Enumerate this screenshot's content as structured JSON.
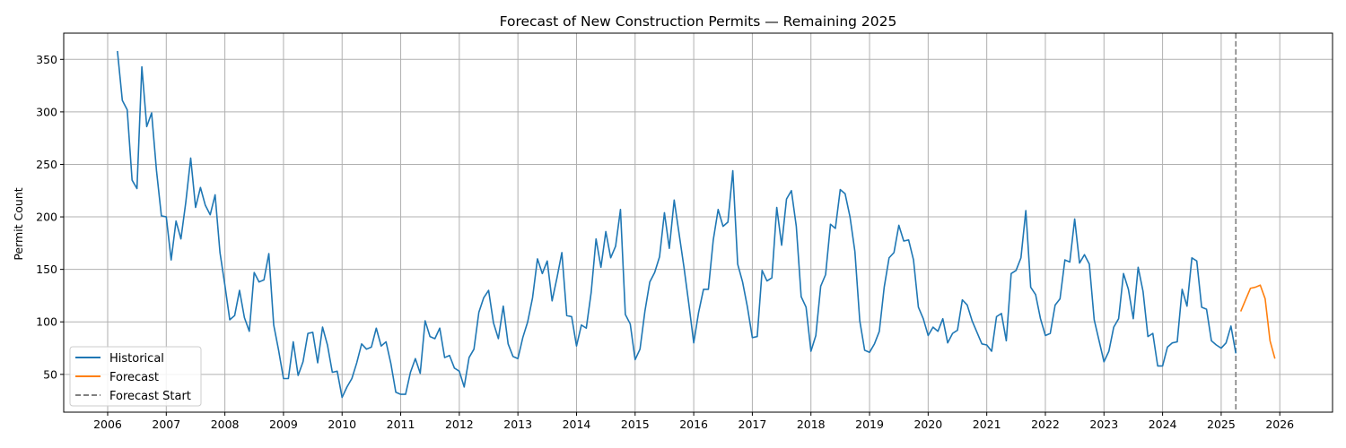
{
  "chart_data": {
    "type": "line",
    "title": "Forecast of New Construction Permits — Remaining 2025",
    "xlabel": "",
    "ylabel": "Permit Count",
    "xlim": [
      2005.25,
      2026.9
    ],
    "ylim": [
      14,
      375
    ],
    "grid": true,
    "legend_position": "lower-left",
    "x_ticks": [
      "2006",
      "2007",
      "2008",
      "2009",
      "2010",
      "2011",
      "2012",
      "2013",
      "2014",
      "2015",
      "2016",
      "2017",
      "2018",
      "2019",
      "2020",
      "2021",
      "2022",
      "2023",
      "2024",
      "2025",
      "2026"
    ],
    "y_ticks": [
      50,
      100,
      150,
      200,
      250,
      300,
      350
    ],
    "series": [
      {
        "name": "Historical",
        "color": "#1f77b4",
        "start": "2006-03",
        "step": "month",
        "values": [
          358,
          311,
          302,
          235,
          227,
          343,
          286,
          299,
          244,
          201,
          200,
          159,
          196,
          179,
          214,
          256,
          209,
          228,
          211,
          202,
          221,
          166,
          135,
          102,
          106,
          130,
          104,
          91,
          147,
          138,
          140,
          165,
          97,
          73,
          46,
          46,
          81,
          49,
          62,
          89,
          90,
          61,
          95,
          78,
          52,
          53,
          28,
          38,
          46,
          61,
          79,
          74,
          76,
          94,
          77,
          81,
          60,
          33,
          31,
          31,
          52,
          65,
          51,
          101,
          86,
          84,
          94,
          66,
          68,
          56,
          53,
          38,
          66,
          74,
          109,
          123,
          130,
          99,
          84,
          115,
          79,
          67,
          65,
          85,
          100,
          123,
          160,
          146,
          158,
          120,
          142,
          166,
          106,
          105,
          77,
          97,
          94,
          128,
          179,
          152,
          186,
          161,
          172,
          207,
          107,
          98,
          64,
          74,
          110,
          138,
          147,
          162,
          204,
          170,
          216,
          184,
          152,
          117,
          80,
          109,
          131,
          131,
          178,
          207,
          191,
          195,
          244,
          155,
          138,
          114,
          85,
          86,
          149,
          139,
          142,
          209,
          173,
          217,
          225,
          191,
          124,
          114,
          72,
          87,
          134,
          145,
          193,
          189,
          226,
          222,
          200,
          167,
          101,
          73,
          71,
          79,
          91,
          133,
          161,
          166,
          192,
          177,
          178,
          159,
          114,
          103,
          87,
          95,
          91,
          103,
          80,
          89,
          92,
          121,
          116,
          101,
          90,
          79,
          78,
          72,
          105,
          108,
          82,
          146,
          149,
          161,
          206,
          133,
          126,
          103,
          87,
          89,
          116,
          122,
          159,
          157,
          198,
          156,
          164,
          155,
          102,
          82,
          62,
          72,
          95,
          103,
          146,
          131,
          103,
          152,
          129,
          86,
          89,
          58,
          58,
          76,
          80,
          81,
          131,
          115,
          161,
          158,
          114,
          112,
          82,
          78,
          75,
          80,
          96,
          70
        ]
      },
      {
        "name": "Forecast",
        "color": "#ff7f0e",
        "start": "2025-05",
        "step": "month",
        "values": [
          110,
          121,
          132,
          133,
          135,
          122,
          82,
          65
        ]
      }
    ],
    "annotations": [
      {
        "name": "Forecast Start",
        "type": "vertical-dashed-line",
        "x": "2025-04",
        "color": "#808080"
      }
    ]
  }
}
